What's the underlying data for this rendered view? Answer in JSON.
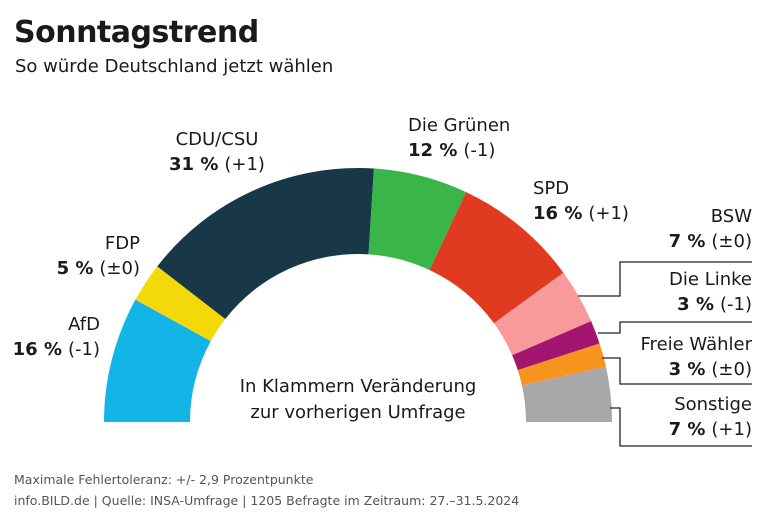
{
  "chart_data": {
    "type": "pie",
    "half": true,
    "title": "Sonntagstrend",
    "subtitle": "So würde Deutschland jetzt wählen",
    "categories": [
      "AfD",
      "FDP",
      "CDU/CSU",
      "Die Grünen",
      "SPD",
      "BSW",
      "Die Linke",
      "Freie Wähler",
      "Sonstige"
    ],
    "values": [
      16,
      5,
      31,
      12,
      16,
      7,
      3,
      3,
      7
    ],
    "value_labels": [
      "16 %",
      "5 %",
      "31 %",
      "12 %",
      "16 %",
      "7 %",
      "3 %",
      "3 %",
      "7 %"
    ],
    "changes": [
      "(-1)",
      "(±0)",
      "(+1)",
      "(-1)",
      "(+1)",
      "(±0)",
      "(-1)",
      "(±0)",
      "(+1)"
    ],
    "colors": [
      "#12b5e5",
      "#f4d90a",
      "#183847",
      "#39b54a",
      "#e03b20",
      "#f89a9c",
      "#a3156e",
      "#f7941d",
      "#a8a8a8"
    ],
    "annotation": [
      "In Klammern Veränderung",
      "zur vorherigen Umfrage"
    ],
    "footer": [
      "Maximale Fehlertoleranz: +/- 2,9 Prozentpunkte",
      "info.BILD.de | Quelle: INSA-Umfrage | 1205 Befragte im Zeitraum: 27.–31.5.2024"
    ]
  }
}
